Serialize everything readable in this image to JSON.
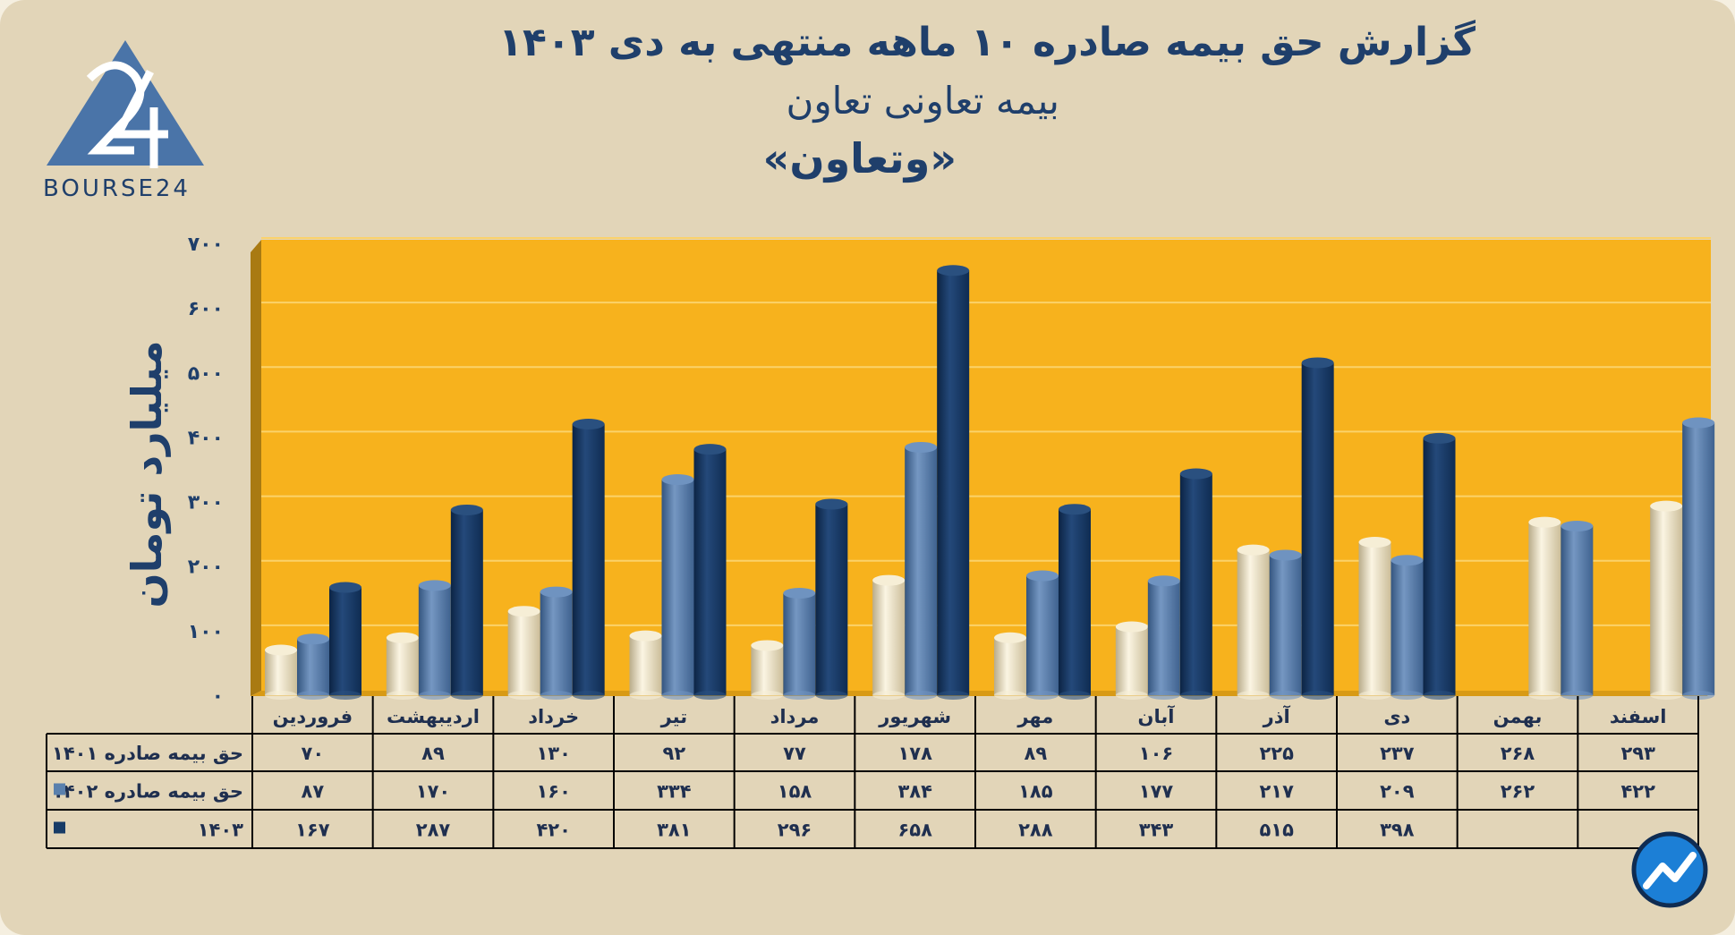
{
  "brand": {
    "logo_text": "BOURSE24",
    "colors": {
      "logo": "#4a74a8",
      "title": "#1f3f6b",
      "plot_bg": "#f7b21d",
      "frame_bg": "#e2d5b8"
    }
  },
  "chart_data": {
    "type": "bar",
    "title": "گزارش  حق بیمه صادره ۱۰ ماهه منتهی به دی ۱۴۰۳",
    "subtitle": "بیمه تعاونی تعاون",
    "ticker": "«وتعاون»",
    "ylabel": "میلیارد تومان",
    "ylim": [
      0,
      700
    ],
    "yticks": [
      0,
      100,
      200,
      300,
      400,
      500,
      600,
      700
    ],
    "ytick_labels": [
      "۰",
      "۱۰۰",
      "۲۰۰",
      "۳۰۰",
      "۴۰۰",
      "۵۰۰",
      "۶۰۰",
      "۷۰۰"
    ],
    "grid": true,
    "categories": [
      "فروردین",
      "اردیبهشت",
      "خرداد",
      "تیر",
      "مرداد",
      "شهریور",
      "مهر",
      "آبان",
      "آذر",
      "دی",
      "بهمن",
      "اسفند"
    ],
    "series": [
      {
        "name": "حق بیمه صادره ۱۴۰۱",
        "color": "#ece1c0",
        "values": [
          70,
          89,
          130,
          92,
          77,
          178,
          89,
          106,
          225,
          237,
          268,
          293
        ],
        "labels": [
          "۷۰",
          "۸۹",
          "۱۳۰",
          "۹۲",
          "۷۷",
          "۱۷۸",
          "۸۹",
          "۱۰۶",
          "۲۲۵",
          "۲۳۷",
          "۲۶۸",
          "۲۹۳"
        ]
      },
      {
        "name": "حق بیمه صادره ۱۴۰۲",
        "color": "#5a80ad",
        "values": [
          87,
          170,
          160,
          334,
          158,
          384,
          185,
          177,
          217,
          209,
          262,
          422
        ],
        "labels": [
          "۸۷",
          "۱۷۰",
          "۱۶۰",
          "۳۳۴",
          "۱۵۸",
          "۳۸۴",
          "۱۸۵",
          "۱۷۷",
          "۲۱۷",
          "۲۰۹",
          "۲۶۲",
          "۴۲۲"
        ]
      },
      {
        "name": "۱۴۰۳",
        "color": "#173b66",
        "values": [
          167,
          287,
          420,
          381,
          296,
          658,
          288,
          343,
          515,
          398,
          null,
          null
        ],
        "labels": [
          "۱۶۷",
          "۲۸۷",
          "۴۲۰",
          "۳۸۱",
          "۲۹۶",
          "۶۵۸",
          "۲۸۸",
          "۳۴۳",
          "۵۱۵",
          "۳۹۸",
          "",
          ""
        ]
      }
    ]
  }
}
